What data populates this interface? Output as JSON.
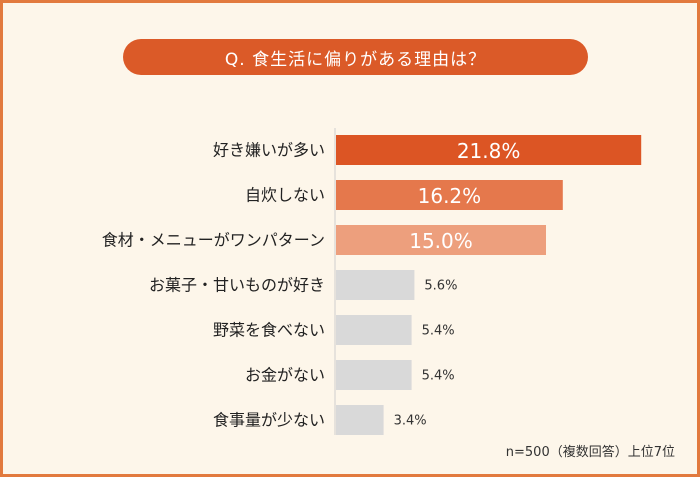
{
  "header": {
    "title": "Q. 食生活に偏りがある理由は？"
  },
  "footnote": "n=500（複数回答）上位7位",
  "colors": {
    "background": "#fdf6ea",
    "border": "#e27a3e",
    "title_bg": "#db5a28",
    "bar_primary": "#dc5524",
    "bar_secondary": "#e5784c",
    "bar_tertiary": "#ed9f7d",
    "bar_other": "#d9d9d9",
    "axis": "#cfcfcf"
  },
  "chart_data": {
    "type": "bar",
    "orientation": "horizontal",
    "title": "Q. 食生活に偏りがある理由は？",
    "categories": [
      "好き嫌いが多い",
      "自炊しない",
      "食材・メニューがワンパターン",
      "お菓子・甘いものが好き",
      "野菜を食べない",
      "お金がない",
      "食事量が少ない"
    ],
    "values": [
      21.8,
      16.2,
      15.0,
      5.6,
      5.4,
      5.4,
      3.4
    ],
    "labels": [
      "21.8%",
      "16.2%",
      "15.0%",
      "5.6%",
      "5.4%",
      "5.4%",
      "3.4%"
    ],
    "unit": "%",
    "xlim": [
      0,
      25
    ],
    "note": "n=500（複数回答）上位7位"
  }
}
